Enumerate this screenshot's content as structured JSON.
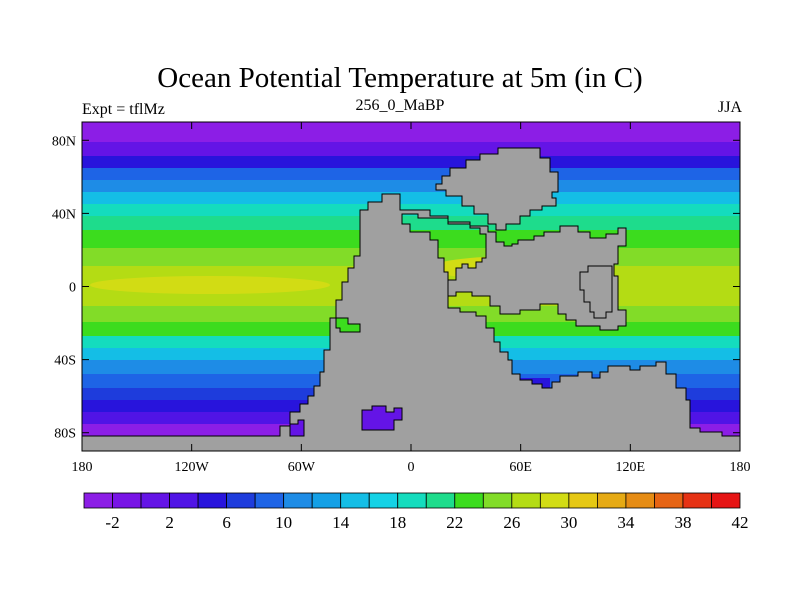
{
  "title": "Ocean Potential Temperature at 5m (in C)",
  "left_label": "Expt = tflMz",
  "center_label": "256_0_MaBP",
  "right_label": "JJA",
  "lat_ticks": [
    {
      "value": 80,
      "label": "80N"
    },
    {
      "value": 40,
      "label": "40N"
    },
    {
      "value": 0,
      "label": "0"
    },
    {
      "value": -40,
      "label": "40S"
    },
    {
      "value": -80,
      "label": "80S"
    }
  ],
  "lon_ticks": [
    {
      "value": -180,
      "label": "180"
    },
    {
      "value": -120,
      "label": "120W"
    },
    {
      "value": -60,
      "label": "60W"
    },
    {
      "value": 0,
      "label": "0"
    },
    {
      "value": 60,
      "label": "60E"
    },
    {
      "value": 120,
      "label": "120E"
    },
    {
      "value": 180,
      "label": "180"
    }
  ],
  "colorbar": {
    "colors": [
      "#8c1ee6",
      "#7814e6",
      "#6414e6",
      "#5014e6",
      "#2814dc",
      "#1e3cdc",
      "#1e64e6",
      "#1e8ce6",
      "#14a0e6",
      "#14bee6",
      "#14d2e6",
      "#14dcbe",
      "#1edc8c",
      "#3cdc1e",
      "#82dc28",
      "#b4dc14",
      "#d2dc14",
      "#e6c814",
      "#e6aa14",
      "#e68c14",
      "#e66414",
      "#e63214",
      "#e61414"
    ],
    "labels": [
      "-2",
      "2",
      "6",
      "10",
      "14",
      "18",
      "22",
      "26",
      "30",
      "34",
      "38",
      "42"
    ]
  },
  "land_color": "#a0a0a0"
}
